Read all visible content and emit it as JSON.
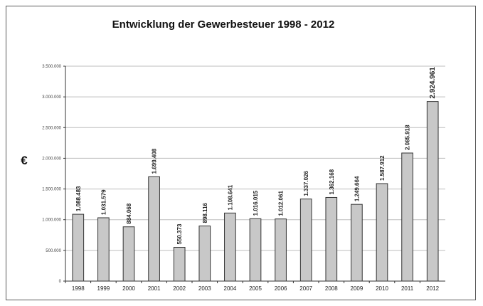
{
  "chart_data": {
    "type": "bar",
    "title": "Entwicklung der Gewerbesteuer 1998 - 2012",
    "xlabel": "",
    "ylabel": "€",
    "ylim": [
      0,
      3500000
    ],
    "yticks": [
      0,
      500000,
      1000000,
      1500000,
      2000000,
      2500000,
      3000000,
      3500000
    ],
    "ytick_labels": [
      "0",
      "500.000",
      "1.000.000",
      "1.500.000",
      "2.000.000",
      "2.500.000",
      "3.000.000",
      "3.500.000"
    ],
    "grid": true,
    "categories": [
      "1998",
      "1999",
      "2000",
      "2001",
      "2002",
      "2003",
      "2004",
      "2005",
      "2006",
      "2007",
      "2008",
      "2009",
      "2010",
      "2011",
      "2012"
    ],
    "values": [
      1088483,
      1031579,
      884068,
      1699408,
      550373,
      898116,
      1108641,
      1016015,
      1012061,
      1337026,
      1362168,
      1249664,
      1587912,
      2085918,
      2924961
    ],
    "data_labels": [
      "1.088.483",
      "1.031.579",
      "884.068",
      "1.699.408",
      "550.373",
      "898.116",
      "1.108.641",
      "1.016.015",
      "1.012.061",
      "1.337.026",
      "1.362.168",
      "1.249.664",
      "1.587.912",
      "2.085.918",
      "2.924.961"
    ],
    "colors": {
      "bar_fill": "#c8c8c8",
      "bar_stroke": "#333333",
      "grid": "#bdbdbd"
    }
  }
}
